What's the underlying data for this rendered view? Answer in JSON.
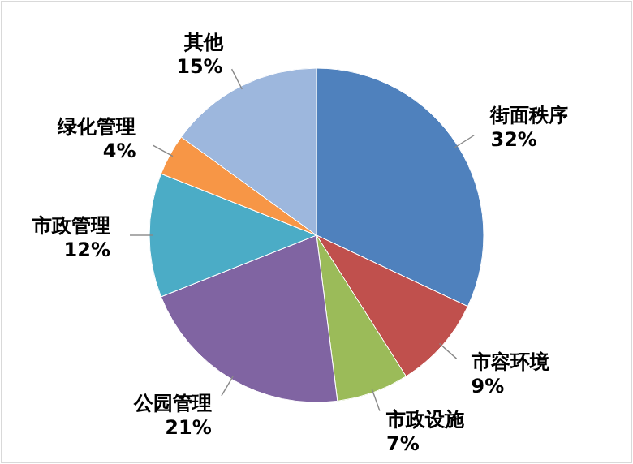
{
  "chart_data": {
    "type": "pie",
    "categories": [
      "街面秩序",
      "市容环境",
      "市政设施",
      "公园管理",
      "市政管理",
      "绿化管理",
      "其他"
    ],
    "values": [
      32,
      9,
      7,
      21,
      12,
      4,
      15
    ],
    "value_labels": [
      "32%",
      "9%",
      "7%",
      "21%",
      "12%",
      "4%",
      "15%"
    ],
    "colors": [
      "#4f81bd",
      "#c0504d",
      "#9bbb59",
      "#8064a2",
      "#4bacc6",
      "#f79646",
      "#9db7dd"
    ],
    "legend": false
  }
}
